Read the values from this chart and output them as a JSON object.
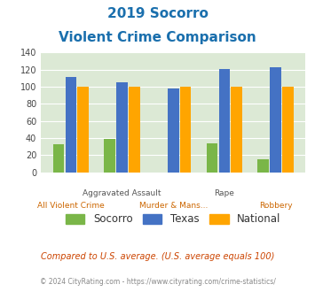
{
  "title_line1": "2019 Socorro",
  "title_line2": "Violent Crime Comparison",
  "categories_top": [
    "",
    "Aggravated Assault",
    "",
    "Rape",
    ""
  ],
  "categories_bottom": [
    "All Violent Crime",
    "",
    "Murder & Mans...",
    "",
    "Robbery"
  ],
  "socorro": [
    33,
    39,
    0,
    34,
    15
  ],
  "texas": [
    111,
    105,
    98,
    121,
    123
  ],
  "national": [
    100,
    100,
    100,
    100,
    100
  ],
  "socorro_color": "#7ab648",
  "texas_color": "#4472c4",
  "national_color": "#ffa500",
  "bg_color": "#dce9d5",
  "ylim": [
    0,
    140
  ],
  "yticks": [
    0,
    20,
    40,
    60,
    80,
    100,
    120,
    140
  ],
  "title_color": "#1a6fad",
  "subtitle_note": "Compared to U.S. average. (U.S. average equals 100)",
  "footer": "© 2024 CityRating.com - https://www.cityrating.com/crime-statistics/",
  "subtitle_color": "#cc4400",
  "footer_color": "#888888"
}
